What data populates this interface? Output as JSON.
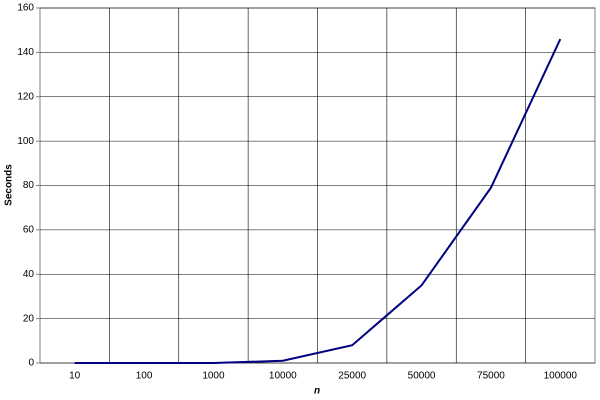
{
  "chart_data": {
    "type": "line",
    "x_label": "n",
    "y_label": "Seconds",
    "categories": [
      "10",
      "100",
      "1000",
      "10000",
      "25000",
      "50000",
      "75000",
      "100000"
    ],
    "series": [
      {
        "color": "#000080",
        "values": [
          0,
          0,
          0,
          1,
          8,
          35,
          79,
          146
        ]
      }
    ],
    "ylim": [
      0,
      160
    ],
    "yticks": [
      0,
      20,
      40,
      60,
      80,
      100,
      120,
      140,
      160
    ],
    "grid": true
  }
}
